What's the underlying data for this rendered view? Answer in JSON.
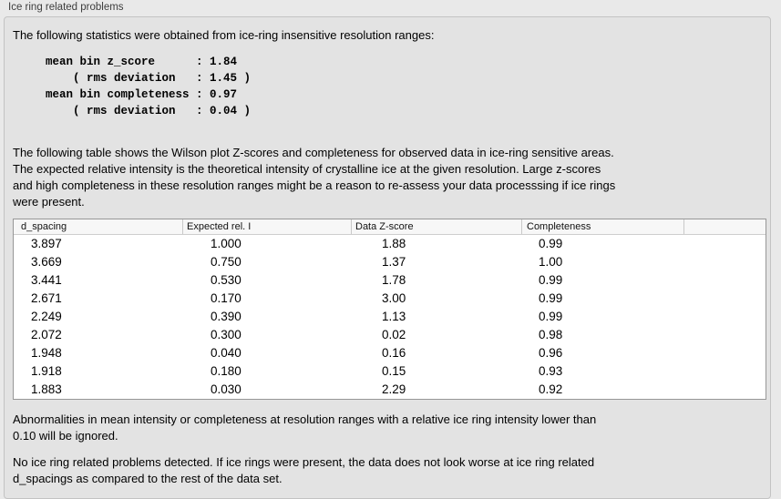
{
  "panel": {
    "title": "Ice ring related problems",
    "stats_intro": "The following statistics were obtained from ice-ring insensitive resolution ranges:",
    "stats_block": "mean bin z_score      : 1.84\n    ( rms deviation   : 1.45 )\nmean bin completeness : 0.97\n    ( rms deviation   : 0.04 )",
    "table_description": "The following table shows the Wilson plot Z-scores and completeness for observed data in ice-ring sensitive areas.\nThe expected relative intensity is the theoretical intensity of crystalline ice at the given resolution. Large z-scores\nand high completeness in these resolution ranges might be a reason to re-assess your data processsing if ice rings\nwere present.",
    "abnormalities_note": "Abnormalities in mean intensity or completeness at resolution ranges with a relative ice ring intensity lower than\n0.10 will be ignored.",
    "conclusion": "No ice ring related problems detected. If ice rings were present, the data does not look worse at ice ring related\nd_spacings as compared to the rest of the data set."
  },
  "table": {
    "columns": [
      "d_spacing",
      "Expected rel. I",
      "Data Z-score",
      "Completeness",
      ""
    ],
    "rows": [
      [
        "3.897",
        "1.000",
        "1.88",
        "0.99"
      ],
      [
        "3.669",
        "0.750",
        "1.37",
        "1.00"
      ],
      [
        "3.441",
        "0.530",
        "1.78",
        "0.99"
      ],
      [
        "2.671",
        "0.170",
        "3.00",
        "0.99"
      ],
      [
        "2.249",
        "0.390",
        "1.13",
        "0.99"
      ],
      [
        "2.072",
        "0.300",
        "0.02",
        "0.98"
      ],
      [
        "1.948",
        "0.040",
        "0.16",
        "0.96"
      ],
      [
        "1.918",
        "0.180",
        "0.15",
        "0.93"
      ],
      [
        "1.883",
        "0.030",
        "2.29",
        "0.92"
      ]
    ]
  }
}
